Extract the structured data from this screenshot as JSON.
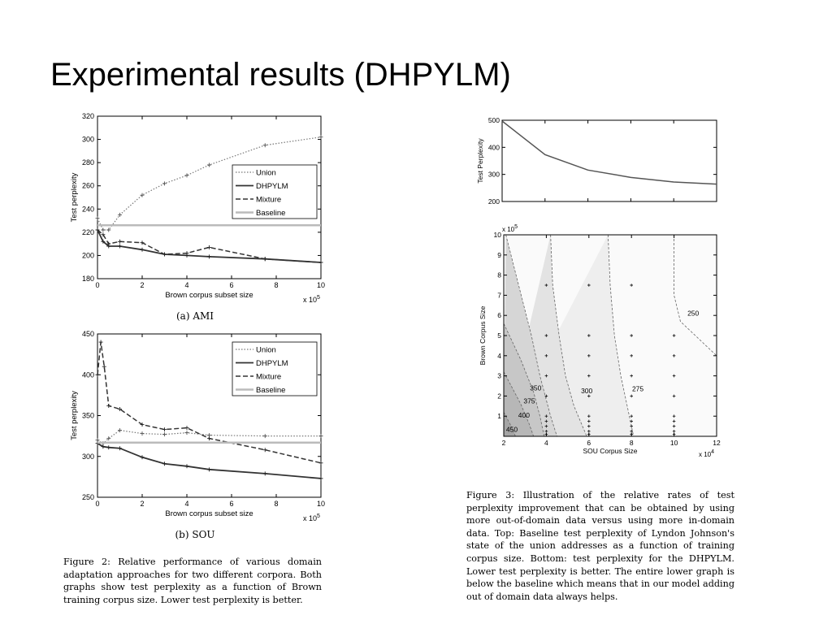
{
  "slide": {
    "title": "Experimental results (DHPYLM)"
  },
  "legend_labels": [
    "Union",
    "DHPYLM",
    "Mixture",
    "Baseline"
  ],
  "chart_data": [
    {
      "id": "ami",
      "type": "line",
      "title": "",
      "subtitle": "(a) AMI",
      "xlabel": "Brown corpus subset size",
      "ylabel": "Test perplexity",
      "x_multiplier": "x 10",
      "x_multiplier_exp": "5",
      "xlim": [
        0,
        10
      ],
      "ylim": [
        180,
        320
      ],
      "xticks": [
        0,
        2,
        4,
        6,
        8,
        10
      ],
      "yticks": [
        180,
        200,
        220,
        240,
        260,
        280,
        300,
        320
      ],
      "legend_position": "top-right",
      "series": [
        {
          "name": "Union",
          "x": [
            0,
            0.25,
            0.5,
            1,
            2,
            3,
            4,
            5,
            7.5,
            10
          ],
          "y": [
            232,
            222,
            222,
            235,
            252,
            262,
            269,
            278,
            295,
            302
          ]
        },
        {
          "name": "DHPYLM",
          "x": [
            0,
            0.25,
            0.5,
            1,
            2,
            3,
            4,
            5,
            7.5,
            10
          ],
          "y": [
            222,
            212,
            208,
            208,
            205,
            201,
            200,
            199,
            197,
            194
          ]
        },
        {
          "name": "Mixture",
          "x": [
            0,
            0.25,
            0.5,
            1,
            2,
            3,
            4,
            5,
            7.5,
            10
          ],
          "y": [
            222,
            218,
            210,
            212,
            211,
            201,
            202,
            207,
            197,
            194
          ]
        },
        {
          "name": "Baseline",
          "x": [
            0,
            10
          ],
          "y": [
            226,
            226
          ]
        }
      ]
    },
    {
      "id": "sou",
      "type": "line",
      "title": "",
      "subtitle": "(b) SOU",
      "xlabel": "Brown corpus subset size",
      "ylabel": "Test perplexity",
      "x_multiplier": "x 10",
      "x_multiplier_exp": "5",
      "xlim": [
        0,
        10
      ],
      "ylim": [
        250,
        450
      ],
      "xticks": [
        0,
        2,
        4,
        6,
        8,
        10
      ],
      "yticks": [
        250,
        300,
        350,
        400,
        450
      ],
      "legend_position": "top-right",
      "series": [
        {
          "name": "Union",
          "x": [
            0,
            0.25,
            0.5,
            1,
            2,
            3,
            4,
            5,
            7.5,
            10
          ],
          "y": [
            320,
            316,
            322,
            332,
            328,
            327,
            329,
            326,
            325,
            325
          ]
        },
        {
          "name": "DHPYLM",
          "x": [
            0,
            0.25,
            0.5,
            1,
            2,
            3,
            4,
            5,
            7.5,
            10
          ],
          "y": [
            316,
            312,
            311,
            310,
            299,
            291,
            288,
            284,
            279,
            273
          ]
        },
        {
          "name": "Mixture",
          "x": [
            0,
            0.15,
            0.3,
            0.5,
            1,
            2,
            3,
            4,
            5,
            7.5,
            10
          ],
          "y": [
            400,
            440,
            410,
            362,
            358,
            339,
            333,
            335,
            322,
            308,
            292
          ]
        },
        {
          "name": "Baseline",
          "x": [
            0,
            10
          ],
          "y": [
            317,
            317
          ]
        }
      ]
    },
    {
      "id": "baseline-top",
      "type": "line",
      "title": "",
      "xlabel": "",
      "ylabel": "Test Perplexity",
      "xlim": [
        2,
        12
      ],
      "ylim": [
        200,
        500
      ],
      "yticks": [
        200,
        300,
        400,
        500
      ],
      "series": [
        {
          "x": [
            2,
            4,
            6,
            8,
            10,
            12
          ],
          "y": [
            497,
            373,
            316,
            289,
            272,
            264
          ]
        }
      ]
    },
    {
      "id": "contour",
      "type": "heatmap",
      "title": "",
      "xlabel": "SOU Corpus Size",
      "ylabel": "Brown Corpus Size",
      "x_multiplier": "x 10",
      "x_multiplier_exp": "4",
      "y_multiplier": "x 10",
      "y_multiplier_exp": "5",
      "xlim": [
        2,
        12
      ],
      "ylim": [
        0,
        10
      ],
      "xticks": [
        2,
        4,
        6,
        8,
        10,
        12
      ],
      "yticks": [
        1,
        2,
        3,
        4,
        5,
        6,
        7,
        8,
        9,
        10
      ],
      "contour_levels": [
        {
          "label": "450",
          "x": [
            2,
            2.35,
            2.55
          ],
          "y": [
            1.2,
            0.5,
            0
          ]
        },
        {
          "label": "400",
          "x": [
            2,
            2.8,
            3.2,
            3.4
          ],
          "y": [
            3.2,
            1.6,
            0.6,
            0
          ]
        },
        {
          "label": "375",
          "x": [
            2,
            2.8,
            3.4,
            3.7,
            3.9
          ],
          "y": [
            5.6,
            3.8,
            2.2,
            1.0,
            0
          ]
        },
        {
          "label": "350",
          "x": [
            2.1,
            2.7,
            3.3,
            3.7,
            4.0,
            4.2,
            4.5
          ],
          "y": [
            10,
            7.5,
            5.0,
            3.0,
            1.8,
            1.0,
            0
          ]
        },
        {
          "label": "300",
          "x": [
            4.2,
            4.3,
            4.6,
            4.9,
            5.3,
            5.9
          ],
          "y": [
            10,
            7.5,
            5.0,
            3.0,
            1.5,
            0
          ]
        },
        {
          "label": "275",
          "x": [
            6.9,
            7.0,
            7.2,
            7.5,
            7.8,
            8.1
          ],
          "y": [
            10,
            7.5,
            5.0,
            3.0,
            1.5,
            0
          ]
        },
        {
          "label": "250",
          "x": [
            10.0,
            10.0,
            10.3,
            11.2,
            12.0
          ],
          "y": [
            10,
            7.0,
            5.7,
            4.8,
            4.0
          ]
        }
      ],
      "contour_label_positions": [
        {
          "label": "450",
          "x": 2.38,
          "y": 0.35
        },
        {
          "label": "400",
          "x": 2.95,
          "y": 1.05
        },
        {
          "label": "375",
          "x": 3.2,
          "y": 1.75
        },
        {
          "label": "350",
          "x": 3.5,
          "y": 2.4
        },
        {
          "label": "300",
          "x": 5.9,
          "y": 2.25
        },
        {
          "label": "275",
          "x": 8.3,
          "y": 2.35
        },
        {
          "label": "250",
          "x": 10.9,
          "y": 6.1
        }
      ],
      "sample_points": [
        {
          "x": 4,
          "y": [
            0.1,
            0.25,
            0.5,
            0.75,
            1,
            2,
            3,
            4,
            5,
            7.5
          ]
        },
        {
          "x": 6,
          "y": [
            0.1,
            0.25,
            0.5,
            0.75,
            1,
            2,
            3,
            4,
            5,
            7.5
          ]
        },
        {
          "x": 8,
          "y": [
            0.1,
            0.25,
            0.5,
            0.75,
            1,
            2,
            3,
            4,
            5,
            7.5
          ]
        },
        {
          "x": 10,
          "y": [
            0.1,
            0.25,
            0.5,
            0.75,
            1,
            2,
            3,
            4,
            5
          ]
        }
      ]
    }
  ],
  "captions": {
    "figure2": "Figure 2: Relative performance of various domain adaptation approaches for two different corpora. Both graphs show test perplexity as a function of Brown training corpus size. Lower test perplexity is better.",
    "figure3": "Figure 3: Illustration of the relative rates of test perplexity improvement that can be obtained by using more out-of-domain data versus using more in-domain data. Top: Baseline test perplexity of Lyndon Johnson's state of the union addresses as a function of training corpus size. Bottom: test perplexity for the DHPYLM. Lower test perplexity is better. The entire lower graph is below the baseline which means that in our model adding out of domain data always helps."
  }
}
